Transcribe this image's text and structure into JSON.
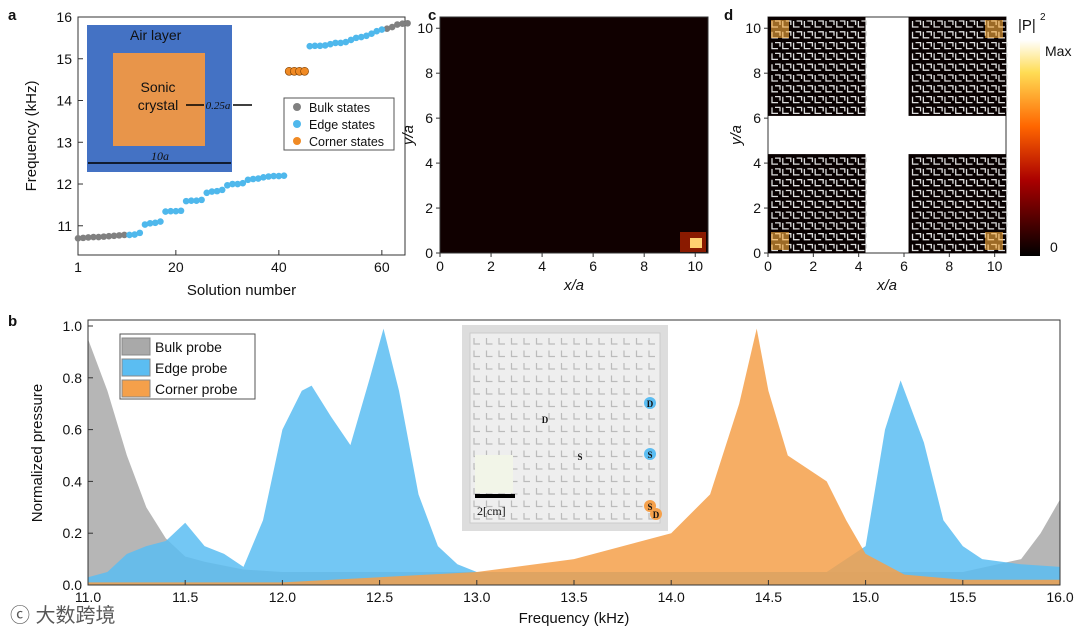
{
  "chart_data": [
    {
      "type": "scatter",
      "panel": "a",
      "xlabel": "Solution number",
      "ylabel": "Frequency (kHz)",
      "xlim": [
        1,
        64.5
      ],
      "ylim": [
        10.3,
        16
      ],
      "xticks": [
        "1",
        "20",
        "40",
        "60"
      ],
      "yticks": [
        "11",
        "12",
        "13",
        "14",
        "15",
        "16"
      ],
      "legend": [
        "Bulk states",
        "Edge states",
        "Corner states"
      ],
      "series": [
        {
          "name": "Bulk states",
          "color": "#808080",
          "x": [
            1,
            2,
            3,
            4,
            5,
            6,
            7,
            8,
            9,
            10,
            61,
            62,
            63,
            64,
            65
          ],
          "y": [
            10.7,
            10.71,
            10.72,
            10.73,
            10.73,
            10.74,
            10.75,
            10.76,
            10.77,
            10.78,
            15.72,
            15.76,
            15.82,
            15.84,
            15.85
          ]
        },
        {
          "name": "Edge states",
          "color": "#4fb8ec",
          "x": [
            11,
            12,
            13,
            14,
            15,
            16,
            17,
            18,
            19,
            20,
            21,
            22,
            23,
            24,
            25,
            26,
            27,
            28,
            29,
            30,
            31,
            32,
            33,
            34,
            35,
            36,
            37,
            38,
            39,
            40,
            41,
            46,
            47,
            48,
            49,
            50,
            51,
            52,
            53,
            54,
            55,
            56,
            57,
            58,
            59,
            60
          ],
          "y": [
            10.78,
            10.79,
            10.83,
            11.03,
            11.06,
            11.07,
            11.1,
            11.34,
            11.35,
            11.35,
            11.36,
            11.59,
            11.6,
            11.6,
            11.62,
            11.79,
            11.82,
            11.83,
            11.86,
            11.97,
            12.0,
            12.0,
            12.02,
            12.1,
            12.12,
            12.13,
            12.16,
            12.18,
            12.19,
            12.19,
            12.2,
            15.3,
            15.31,
            15.31,
            15.32,
            15.35,
            15.38,
            15.38,
            15.4,
            15.45,
            15.5,
            15.52,
            15.55,
            15.6,
            15.66,
            15.7
          ]
        },
        {
          "name": "Corner states",
          "color": "#f08a24",
          "x": [
            42,
            43,
            44,
            45
          ],
          "y": [
            14.7,
            14.7,
            14.7,
            14.7
          ]
        }
      ],
      "inset": {
        "outer_label": "Air layer",
        "inner_label": "Sonic crystal",
        "gap_label": "0.25a",
        "width_label": "10a"
      }
    },
    {
      "type": "heatmap",
      "panel": "c",
      "xlabel": "x/a",
      "ylabel": "y/a",
      "xticks": [
        "0",
        "2",
        "4",
        "6",
        "8",
        "10"
      ],
      "yticks": [
        "0",
        "2",
        "4",
        "6",
        "8",
        "10"
      ],
      "hotspot": "bottom-right corner"
    },
    {
      "type": "heatmap",
      "panel": "d",
      "xlabel": "x/a",
      "ylabel": "y/a",
      "xticks": [
        "0",
        "2",
        "4",
        "6",
        "8",
        "10"
      ],
      "yticks": [
        "0",
        "2",
        "4",
        "6",
        "8",
        "10"
      ],
      "colorbar": {
        "label": "|P|",
        "sup": "2",
        "max": "Max",
        "min": "0"
      }
    },
    {
      "type": "area",
      "panel": "b",
      "xlabel": "Frequency (kHz)",
      "ylabel": "Normalized pressure",
      "xlim": [
        11,
        16
      ],
      "ylim": [
        0,
        1
      ],
      "xticks": [
        "11.0",
        "11.5",
        "12.0",
        "12.5",
        "13.0",
        "13.5",
        "14.0",
        "14.5",
        "15.0",
        "15.5",
        "16.0"
      ],
      "yticks": [
        "0.0",
        "0.2",
        "0.4",
        "0.6",
        "0.8",
        "1.0"
      ],
      "legend_position": "top-left",
      "series": [
        {
          "name": "Bulk probe",
          "color": "#a9a9a9",
          "x": [
            11,
            11.1,
            11.2,
            11.3,
            11.4,
            11.5,
            11.6,
            11.8,
            12,
            13,
            14,
            15,
            15.5,
            15.8,
            15.9,
            16
          ],
          "y": [
            0.95,
            0.75,
            0.5,
            0.3,
            0.18,
            0.11,
            0.09,
            0.06,
            0.05,
            0.05,
            0.05,
            0.05,
            0.05,
            0.1,
            0.2,
            0.33
          ]
        },
        {
          "name": "Edge probe",
          "color": "#5bbdf2",
          "x": [
            11,
            11.1,
            11.2,
            11.3,
            11.4,
            11.5,
            11.6,
            11.7,
            11.8,
            11.9,
            12,
            12.1,
            12.15,
            12.25,
            12.35,
            12.45,
            12.52,
            12.6,
            12.7,
            12.8,
            12.9,
            13,
            14,
            14.8,
            15,
            15.1,
            15.18,
            15.3,
            15.4,
            15.5,
            15.6,
            15.8,
            16
          ],
          "y": [
            0.03,
            0.05,
            0.12,
            0.15,
            0.17,
            0.24,
            0.15,
            0.12,
            0.07,
            0.25,
            0.6,
            0.75,
            0.77,
            0.65,
            0.54,
            0.8,
            0.99,
            0.75,
            0.35,
            0.15,
            0.08,
            0.05,
            0.05,
            0.05,
            0.15,
            0.6,
            0.79,
            0.55,
            0.25,
            0.15,
            0.1,
            0.08,
            0.07
          ]
        },
        {
          "name": "Corner probe",
          "color": "#f5a04a",
          "x": [
            11,
            12,
            12.5,
            13,
            13.5,
            14,
            14.2,
            14.35,
            14.44,
            14.5,
            14.6,
            14.8,
            14.9,
            15,
            15.2,
            15.5,
            16
          ],
          "y": [
            0.01,
            0.01,
            0.03,
            0.05,
            0.1,
            0.2,
            0.35,
            0.7,
            0.99,
            0.75,
            0.5,
            0.4,
            0.25,
            0.12,
            0.04,
            0.02,
            0.02
          ]
        }
      ],
      "photo_inset": {
        "scale_label": "2[cm]",
        "markers": [
          "D",
          "S",
          "D",
          "S",
          "S",
          "D"
        ]
      }
    }
  ],
  "panel_labels": [
    "a",
    "b",
    "c",
    "d"
  ],
  "watermark": "大数跨境"
}
